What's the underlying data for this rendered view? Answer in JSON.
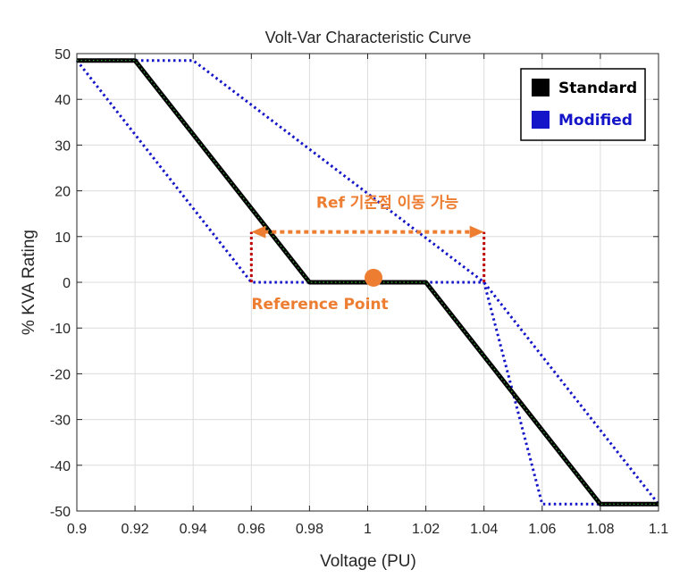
{
  "chart_data": {
    "type": "line",
    "title": "Volt-Var Characteristic Curve",
    "xlabel": "Voltage (PU)",
    "ylabel": "% KVA Rating",
    "xlim": [
      0.9,
      1.1
    ],
    "ylim": [
      -50,
      50
    ],
    "xticks": [
      "0.9",
      "0.92",
      "0.94",
      "0.96",
      "0.98",
      "1",
      "1.02",
      "1.04",
      "1.06",
      "1.08",
      "1.1"
    ],
    "yticks": [
      "50",
      "40",
      "30",
      "20",
      "10",
      "0",
      "-10",
      "-20",
      "-30",
      "-40",
      "-50"
    ],
    "grid": true,
    "legend": {
      "position": "top-right",
      "entries": [
        {
          "name": "Standard",
          "color": "#000000"
        },
        {
          "name": "Modified",
          "color": "#1414c8"
        }
      ]
    },
    "series": [
      {
        "name": "Standard",
        "color": "#000000",
        "accent": "#3cb43c",
        "x": [
          0.9,
          0.92,
          0.98,
          1.02,
          1.08,
          1.1
        ],
        "y": [
          48.5,
          48.5,
          0,
          0,
          -48.5,
          -48.5
        ]
      },
      {
        "name": "Modified",
        "color": "#1414c8",
        "style": "dotted",
        "x": [
          0.9,
          0.94,
          1.04,
          1.1
        ],
        "y": [
          48.5,
          48.5,
          0,
          -48.5
        ]
      },
      {
        "name": "Modified",
        "color": "#1414c8",
        "style": "dotted",
        "x": [
          0.9,
          0.96,
          0.96,
          1.04,
          1.06,
          1.1
        ],
        "y": [
          48.5,
          0,
          0,
          0,
          -48.5,
          -48.5
        ]
      }
    ],
    "annotations": {
      "accent_color": "#ed7d31",
      "marker_color": "#c00000",
      "shift_text": "Ref 기준점 이동 가능",
      "shift_arrow": {
        "x_from": 0.96,
        "x_to": 1.04,
        "y": 11
      },
      "verticals": [
        {
          "x": 0.96,
          "y_from": 0,
          "y_to": 11
        },
        {
          "x": 1.04,
          "y_from": 0,
          "y_to": 11
        }
      ],
      "reference_text": "Reference Point",
      "reference_point": {
        "x": 1.002,
        "y": 1
      }
    }
  }
}
